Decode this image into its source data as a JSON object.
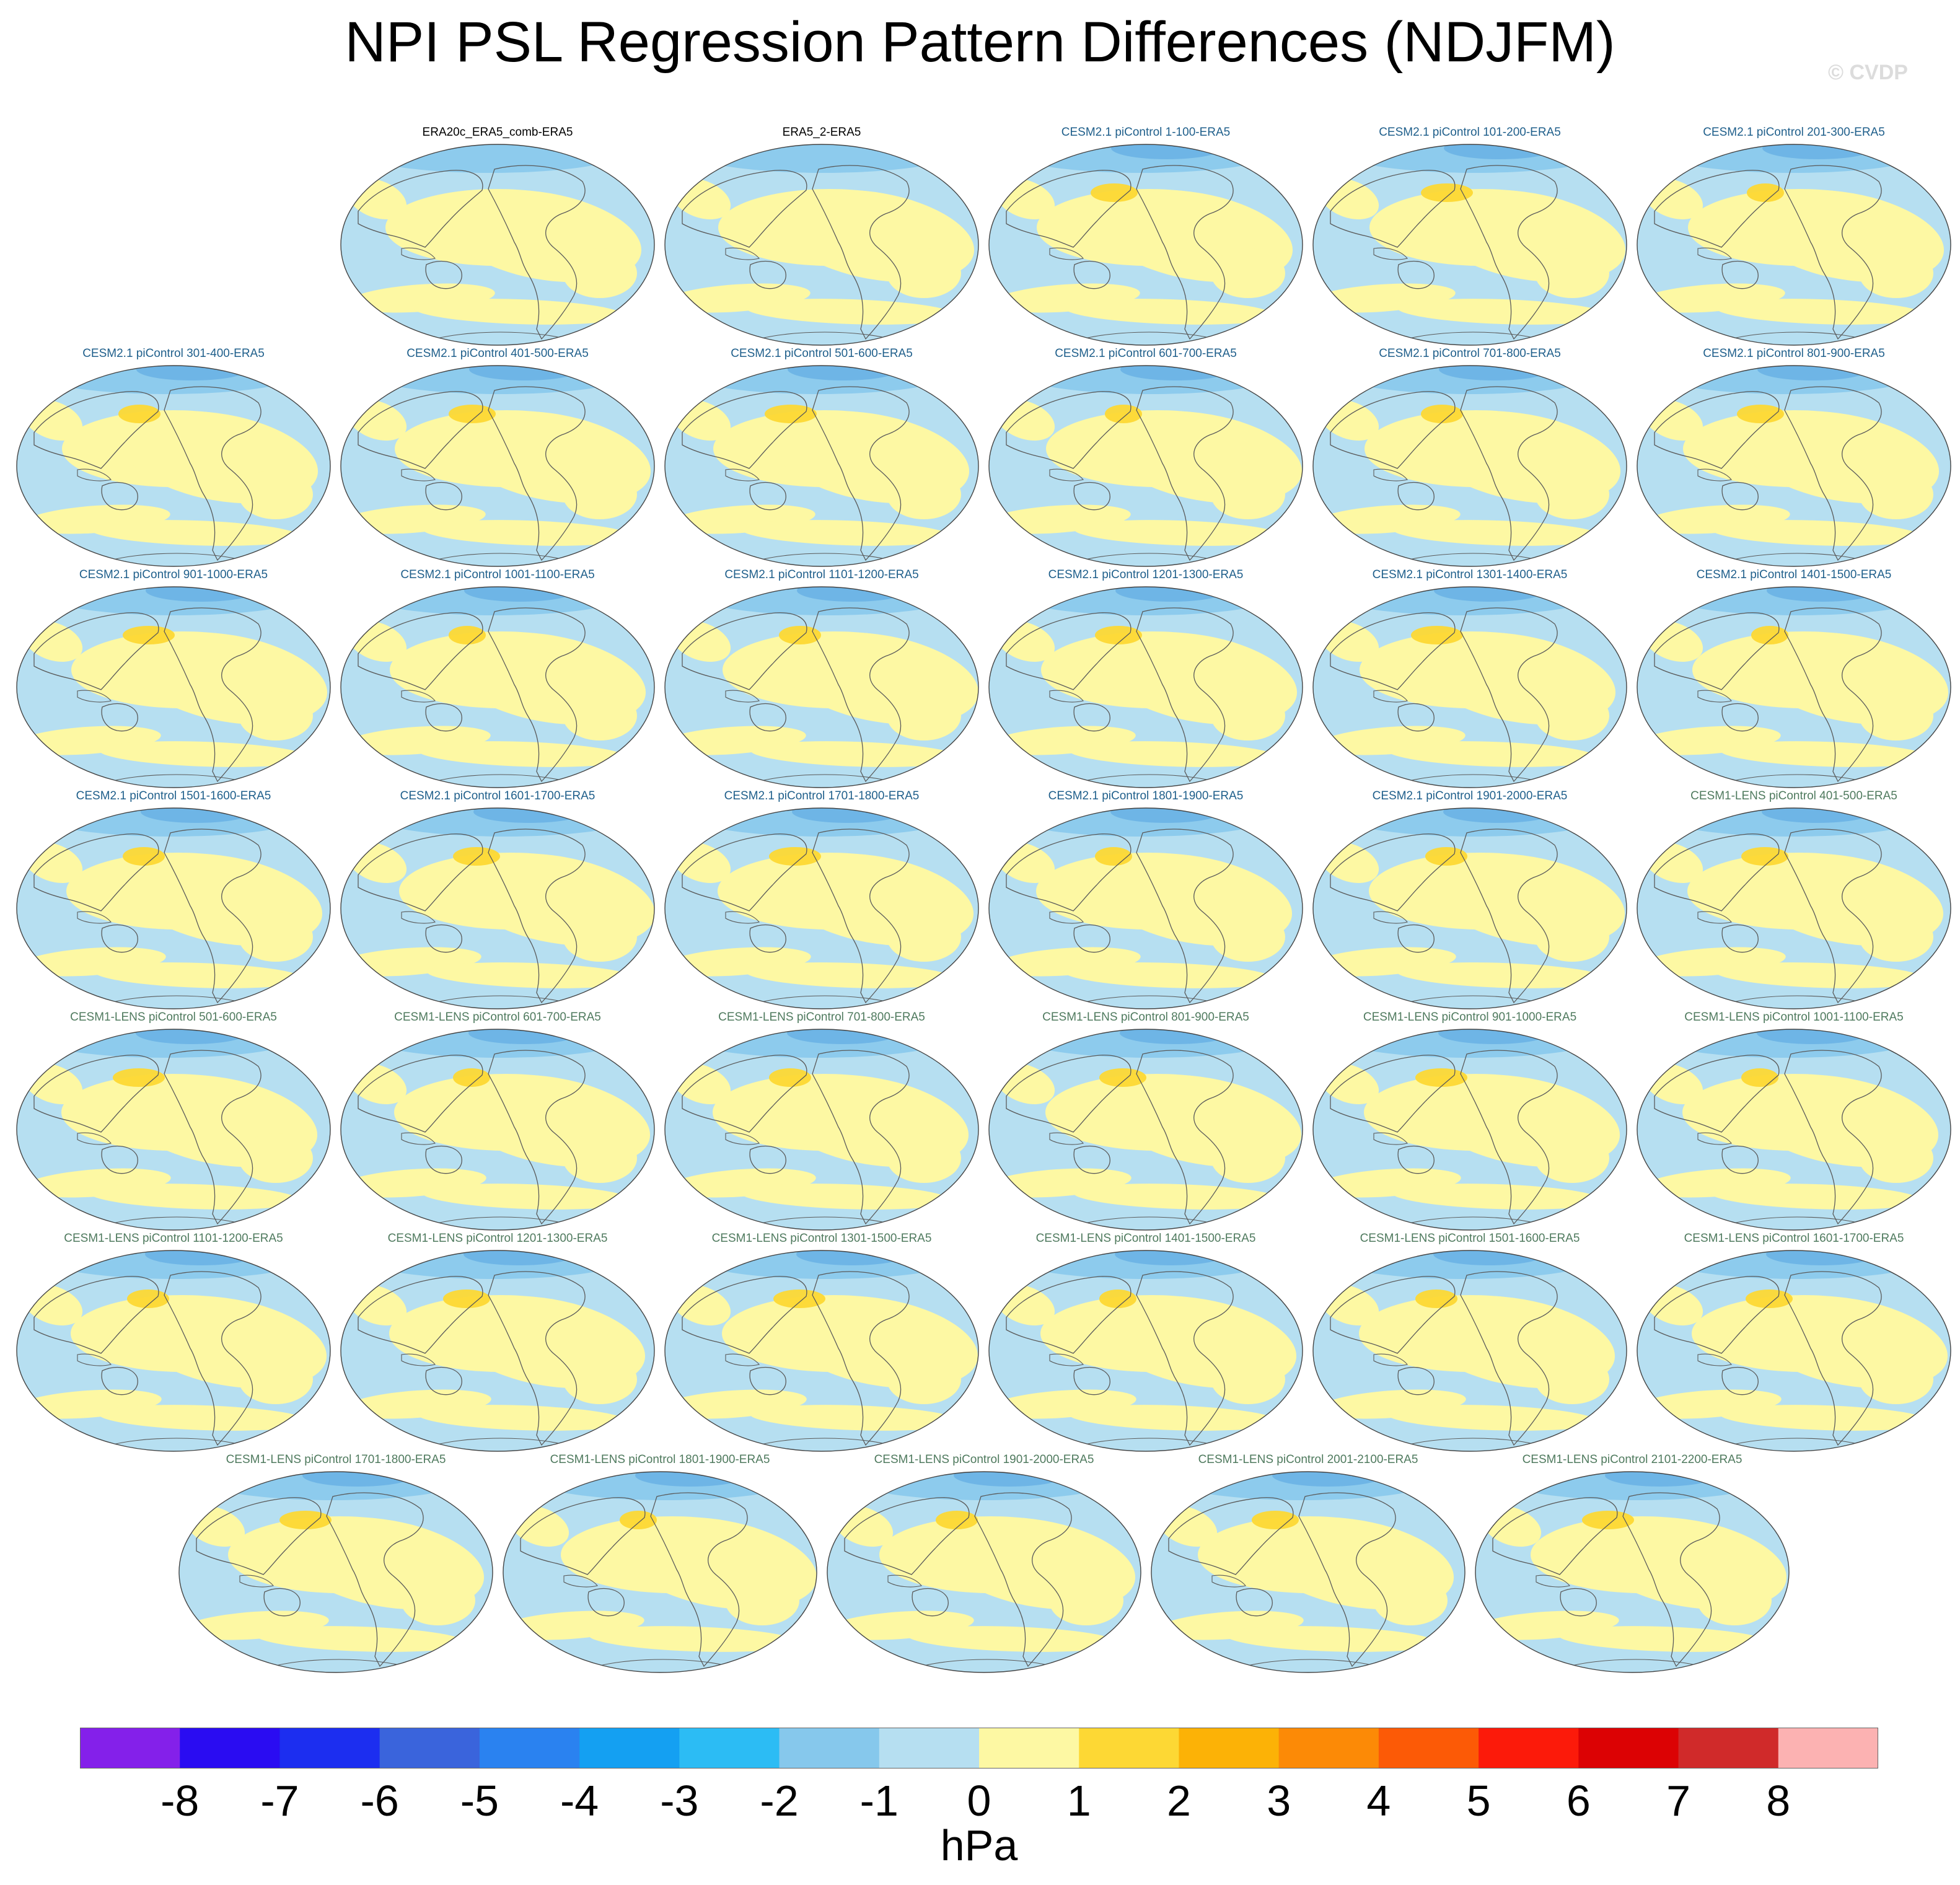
{
  "header": {
    "title": "NPI PSL Regression Pattern Differences (NDJFM)",
    "credit": "© CVDP"
  },
  "colors": {
    "ocean_light_blue": "#b6dff1",
    "land_light_yellow": "#fdf8a3",
    "coast_line": "#5a5a5a",
    "obs_title": "#000000",
    "cesm2_title": "#1f5f8b",
    "cesm1_title": "#4f7a5e"
  },
  "panels": [
    {
      "title": "ERA20c_ERA5_comb-ERA5",
      "group": "obs"
    },
    {
      "title": "ERA5_2-ERA5",
      "group": "obs"
    },
    {
      "title": "CESM2.1 piControl 1-100-ERA5",
      "group": "c2"
    },
    {
      "title": "CESM2.1 piControl 101-200-ERA5",
      "group": "c2"
    },
    {
      "title": "CESM2.1 piControl 201-300-ERA5",
      "group": "c2"
    },
    {
      "title": "CESM2.1 piControl 301-400-ERA5",
      "group": "c2"
    },
    {
      "title": "CESM2.1 piControl 401-500-ERA5",
      "group": "c2"
    },
    {
      "title": "CESM2.1 piControl 501-600-ERA5",
      "group": "c2"
    },
    {
      "title": "CESM2.1 piControl 601-700-ERA5",
      "group": "c2"
    },
    {
      "title": "CESM2.1 piControl 701-800-ERA5",
      "group": "c2"
    },
    {
      "title": "CESM2.1 piControl 801-900-ERA5",
      "group": "c2"
    },
    {
      "title": "CESM2.1 piControl 901-1000-ERA5",
      "group": "c2"
    },
    {
      "title": "CESM2.1 piControl 1001-1100-ERA5",
      "group": "c2"
    },
    {
      "title": "CESM2.1 piControl 1101-1200-ERA5",
      "group": "c2"
    },
    {
      "title": "CESM2.1 piControl 1201-1300-ERA5",
      "group": "c2"
    },
    {
      "title": "CESM2.1 piControl 1301-1400-ERA5",
      "group": "c2"
    },
    {
      "title": "CESM2.1 piControl 1401-1500-ERA5",
      "group": "c2"
    },
    {
      "title": "CESM2.1 piControl 1501-1600-ERA5",
      "group": "c2"
    },
    {
      "title": "CESM2.1 piControl 1601-1700-ERA5",
      "group": "c2"
    },
    {
      "title": "CESM2.1 piControl 1701-1800-ERA5",
      "group": "c2"
    },
    {
      "title": "CESM2.1 piControl 1801-1900-ERA5",
      "group": "c2"
    },
    {
      "title": "CESM2.1 piControl 1901-2000-ERA5",
      "group": "c2"
    },
    {
      "title": "CESM1-LENS piControl 401-500-ERA5",
      "group": "c1"
    },
    {
      "title": "CESM1-LENS piControl 501-600-ERA5",
      "group": "c1"
    },
    {
      "title": "CESM1-LENS piControl 601-700-ERA5",
      "group": "c1"
    },
    {
      "title": "CESM1-LENS piControl 701-800-ERA5",
      "group": "c1"
    },
    {
      "title": "CESM1-LENS piControl 801-900-ERA5",
      "group": "c1"
    },
    {
      "title": "CESM1-LENS piControl 901-1000-ERA5",
      "group": "c1"
    },
    {
      "title": "CESM1-LENS piControl 1001-1100-ERA5",
      "group": "c1"
    },
    {
      "title": "CESM1-LENS piControl 1101-1200-ERA5",
      "group": "c1"
    },
    {
      "title": "CESM1-LENS piControl 1201-1300-ERA5",
      "group": "c1"
    },
    {
      "title": "CESM1-LENS piControl 1301-1500-ERA5",
      "group": "c1"
    },
    {
      "title": "CESM1-LENS piControl 1401-1500-ERA5",
      "group": "c1"
    },
    {
      "title": "CESM1-LENS piControl 1501-1600-ERA5",
      "group": "c1"
    },
    {
      "title": "CESM1-LENS piControl 1601-1700-ERA5",
      "group": "c1"
    },
    {
      "title": "CESM1-LENS piControl 1701-1800-ERA5",
      "group": "c1"
    },
    {
      "title": "CESM1-LENS piControl 1801-1900-ERA5",
      "group": "c1"
    },
    {
      "title": "CESM1-LENS piControl 1901-2000-ERA5",
      "group": "c1"
    },
    {
      "title": "CESM1-LENS piControl 2001-2100-ERA5",
      "group": "c1"
    },
    {
      "title": "CESM1-LENS piControl 2101-2200-ERA5",
      "group": "c1"
    }
  ],
  "colorbar": {
    "units": "hPa",
    "labels": [
      "-8",
      "-7",
      "-6",
      "-5",
      "-4",
      "-3",
      "-2",
      "-1",
      "0",
      "1",
      "2",
      "3",
      "4",
      "5",
      "6",
      "7",
      "8"
    ],
    "colors": [
      "#8420ea",
      "#2a0cf2",
      "#1c2ef0",
      "#3a64dc",
      "#2a82f0",
      "#14a0f2",
      "#2cbcf4",
      "#86c8ec",
      "#b6dff1",
      "#fdf8a3",
      "#fdd834",
      "#fcb206",
      "#fc8a06",
      "#fc5a06",
      "#fc1a0a",
      "#dc0204",
      "#d02a2a",
      "#fcb2b2"
    ]
  }
}
